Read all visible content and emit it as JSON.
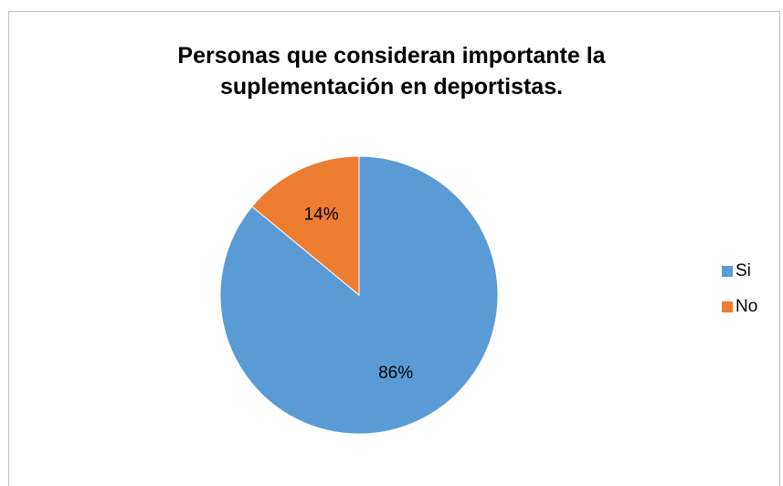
{
  "chart_data": {
    "type": "pie",
    "title": "Personas que consideran importante la suplementación en deportistas.",
    "title_lines": [
      "Personas que consideran importante la",
      "suplementación en deportistas."
    ],
    "categories": [
      "Si",
      "No"
    ],
    "values": [
      86,
      14
    ],
    "data_labels": [
      "86%",
      "14%"
    ],
    "colors": [
      "#5b9bd5",
      "#ed7d31"
    ],
    "legend_position": "right"
  }
}
